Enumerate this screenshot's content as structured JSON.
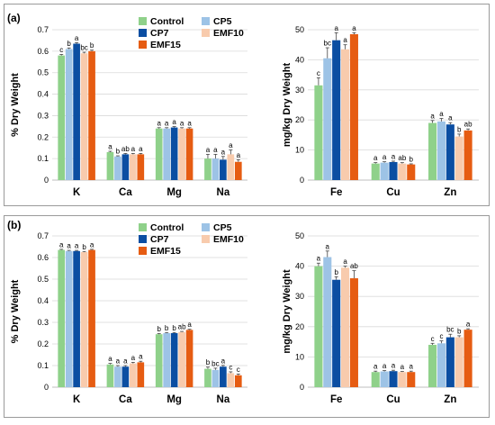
{
  "colors": {
    "Control": "#8fd18a",
    "CP5": "#9dc3e6",
    "CP7": "#0b4ea2",
    "EMF10": "#f8cbad",
    "EMF15": "#e65c12"
  },
  "legend": [
    "Control",
    "CP5",
    "CP7",
    "EMF10",
    "EMF15"
  ],
  "chart_data": [
    {
      "type": "bar",
      "panel": "(a)",
      "categories": [
        "K",
        "Ca",
        "Mg",
        "Na"
      ],
      "ylabel": "% Dry Weight",
      "ylim": [
        0,
        0.7
      ],
      "yticks": [
        "0",
        "0.1",
        "0.2",
        "0.3",
        "0.4",
        "0.5",
        "0.6",
        "0.7"
      ],
      "series": [
        {
          "name": "Control",
          "values": [
            0.58,
            0.13,
            0.24,
            0.1
          ],
          "errors": [
            0.005,
            0.004,
            0.004,
            0.02
          ],
          "letters": [
            "c",
            "a",
            "a",
            "a"
          ]
        },
        {
          "name": "CP5",
          "values": [
            0.61,
            0.11,
            0.24,
            0.1
          ],
          "errors": [
            0.005,
            0.003,
            0.004,
            0.02
          ],
          "letters": [
            "b",
            "b",
            "a",
            "a"
          ]
        },
        {
          "name": "CP7",
          "values": [
            0.635,
            0.12,
            0.245,
            0.095
          ],
          "errors": [
            0.005,
            0.004,
            0.004,
            0.015
          ],
          "letters": [
            "a",
            "ab",
            "a",
            "a"
          ]
        },
        {
          "name": "EMF10",
          "values": [
            0.59,
            0.12,
            0.24,
            0.12
          ],
          "errors": [
            0.005,
            0.004,
            0.004,
            0.02
          ],
          "letters": [
            "bc",
            "a",
            "a",
            "a"
          ]
        },
        {
          "name": "EMF15",
          "values": [
            0.6,
            0.12,
            0.24,
            0.085
          ],
          "errors": [
            0.005,
            0.004,
            0.004,
            0.01
          ],
          "letters": [
            "b",
            "a",
            "a",
            "a"
          ]
        }
      ]
    },
    {
      "type": "bar",
      "panel": "(a)",
      "categories": [
        "Fe",
        "Cu",
        "Zn"
      ],
      "ylabel": "mg/kg Dry Weight",
      "ylim": [
        0,
        50
      ],
      "yticks": [
        "0",
        "10",
        "20",
        "30",
        "40",
        "50"
      ],
      "series": [
        {
          "name": "Control",
          "values": [
            31.5,
            5.5,
            19.0
          ],
          "errors": [
            2.5,
            0.3,
            0.8
          ],
          "letters": [
            "c",
            "a",
            "a"
          ]
        },
        {
          "name": "CP5",
          "values": [
            40.5,
            5.8,
            19.5
          ],
          "errors": [
            3.5,
            0.3,
            1.0
          ],
          "letters": [
            "bc",
            "a",
            "a"
          ]
        },
        {
          "name": "CP7",
          "values": [
            46.5,
            6.0,
            18.5
          ],
          "errors": [
            2.5,
            0.3,
            0.6
          ],
          "letters": [
            "a",
            "a",
            "a"
          ]
        },
        {
          "name": "EMF10",
          "values": [
            43.5,
            5.5,
            14.5
          ],
          "errors": [
            1.5,
            0.3,
            0.8
          ],
          "letters": [
            "a",
            "ab",
            "b"
          ]
        },
        {
          "name": "EMF15",
          "values": [
            48.5,
            5.2,
            16.5
          ],
          "errors": [
            0.5,
            0.2,
            0.5
          ],
          "letters": [
            "a",
            "b",
            "ab"
          ]
        }
      ]
    },
    {
      "type": "bar",
      "panel": "(b)",
      "categories": [
        "K",
        "Ca",
        "Mg",
        "Na"
      ],
      "ylabel": "% Dry Weight",
      "ylim": [
        0,
        0.7
      ],
      "yticks": [
        "0",
        "0.1",
        "0.2",
        "0.3",
        "0.4",
        "0.5",
        "0.6",
        "0.7"
      ],
      "series": [
        {
          "name": "Control",
          "values": [
            0.635,
            0.105,
            0.245,
            0.085
          ],
          "errors": [
            0.003,
            0.005,
            0.003,
            0.008
          ],
          "letters": [
            "a",
            "a",
            "b",
            "b"
          ]
        },
        {
          "name": "CP5",
          "values": [
            0.63,
            0.095,
            0.25,
            0.08
          ],
          "errors": [
            0.003,
            0.005,
            0.003,
            0.008
          ],
          "letters": [
            "a",
            "a",
            "b",
            "bc"
          ]
        },
        {
          "name": "CP7",
          "values": [
            0.63,
            0.095,
            0.25,
            0.095
          ],
          "errors": [
            0.003,
            0.005,
            0.003,
            0.006
          ],
          "letters": [
            "a",
            "a",
            "b",
            "a"
          ]
        },
        {
          "name": "EMF10",
          "values": [
            0.625,
            0.11,
            0.255,
            0.065
          ],
          "errors": [
            0.003,
            0.005,
            0.003,
            0.006
          ],
          "letters": [
            "b",
            "a",
            "ab",
            "c"
          ]
        },
        {
          "name": "EMF15",
          "values": [
            0.635,
            0.115,
            0.265,
            0.055
          ],
          "errors": [
            0.003,
            0.005,
            0.003,
            0.006
          ],
          "letters": [
            "a",
            "a",
            "a",
            "c"
          ]
        }
      ]
    },
    {
      "type": "bar",
      "panel": "(b)",
      "categories": [
        "Fe",
        "Cu",
        "Zn"
      ],
      "ylabel": "mg/kg Dry Weight",
      "ylim": [
        0,
        50
      ],
      "yticks": [
        "0",
        "10",
        "20",
        "30",
        "40",
        "50"
      ],
      "series": [
        {
          "name": "Control",
          "values": [
            40.0,
            5.0,
            14.0
          ],
          "errors": [
            1.0,
            0.3,
            0.5
          ],
          "letters": [
            "a",
            "a",
            "c"
          ]
        },
        {
          "name": "CP5",
          "values": [
            43.0,
            5.2,
            14.5
          ],
          "errors": [
            2.0,
            0.3,
            0.8
          ],
          "letters": [
            "a",
            "a",
            "c"
          ]
        },
        {
          "name": "CP7",
          "values": [
            35.5,
            5.3,
            16.5
          ],
          "errors": [
            1.0,
            0.3,
            1.0
          ],
          "letters": [
            "b",
            "a",
            "bc"
          ]
        },
        {
          "name": "EMF10",
          "values": [
            39.5,
            5.0,
            16.5
          ],
          "errors": [
            0.5,
            0.2,
            0.5
          ],
          "letters": [
            "a",
            "a",
            "b"
          ]
        },
        {
          "name": "EMF15",
          "values": [
            36.0,
            5.0,
            19.0
          ],
          "errors": [
            2.5,
            0.3,
            0.3
          ],
          "letters": [
            "ab",
            "a",
            "a"
          ]
        }
      ]
    }
  ]
}
